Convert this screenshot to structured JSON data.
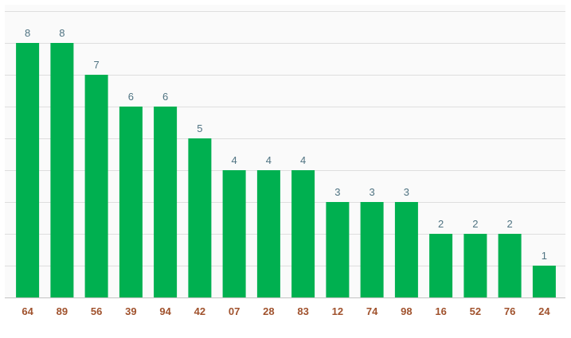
{
  "chart_data": {
    "type": "bar",
    "categories": [
      "64",
      "89",
      "56",
      "39",
      "94",
      "42",
      "07",
      "28",
      "83",
      "12",
      "74",
      "98",
      "16",
      "52",
      "76",
      "24"
    ],
    "values": [
      8,
      8,
      7,
      6,
      6,
      5,
      4,
      4,
      4,
      3,
      3,
      3,
      2,
      2,
      2,
      1
    ],
    "title": "",
    "xlabel": "",
    "ylabel": "",
    "ylim": [
      0,
      9
    ],
    "grid": true,
    "legend": "none",
    "data_labels": true,
    "colors": {
      "bar": "#00b050",
      "value_label": "#4f7382",
      "category_label": "#a0522d",
      "grid": "#dedede",
      "axis": "#c6c6c6",
      "plot_background": "#fafafa"
    }
  }
}
